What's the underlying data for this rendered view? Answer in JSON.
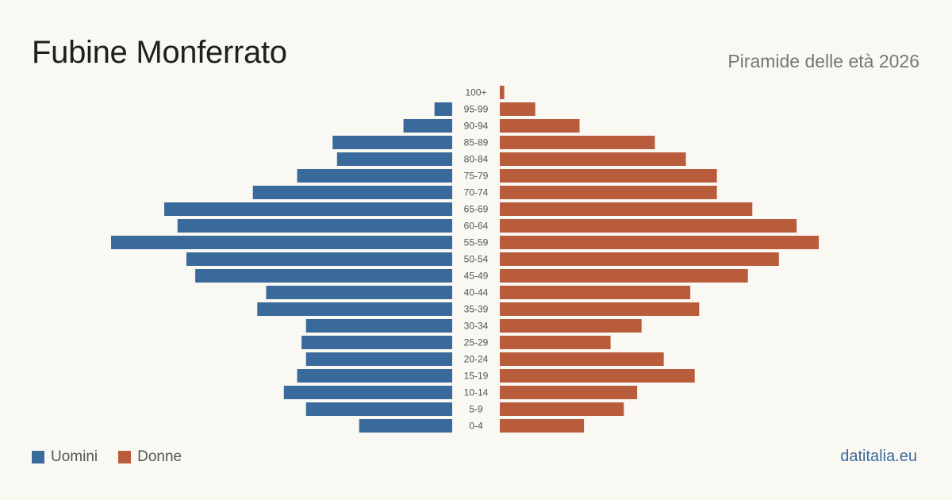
{
  "header": {
    "title": "Fubine Monferrato",
    "subtitle": "Piramide delle età 2026"
  },
  "legend": {
    "men_label": "Uomini",
    "women_label": "Donne"
  },
  "source": "datitalia.eu",
  "colors": {
    "men": "#3a6a9c",
    "women": "#b85c3c",
    "background": "#faf8f3"
  },
  "chart_data": {
    "type": "bar",
    "orientation": "horizontal-pyramid",
    "categories": [
      "100+",
      "95-99",
      "90-94",
      "85-89",
      "80-84",
      "75-79",
      "70-74",
      "65-69",
      "60-64",
      "55-59",
      "50-54",
      "45-49",
      "40-44",
      "35-39",
      "30-34",
      "25-29",
      "20-24",
      "15-19",
      "10-14",
      "5-9",
      "0-4"
    ],
    "series": [
      {
        "name": "Uomini",
        "values": [
          0,
          4,
          11,
          27,
          26,
          35,
          45,
          65,
          62,
          77,
          60,
          58,
          42,
          44,
          33,
          34,
          33,
          35,
          38,
          33,
          21
        ]
      },
      {
        "name": "Donne",
        "values": [
          1,
          8,
          18,
          35,
          42,
          49,
          49,
          57,
          67,
          72,
          63,
          56,
          43,
          45,
          32,
          25,
          37,
          44,
          31,
          28,
          19
        ]
      }
    ],
    "title": "Piramide delle età 2026",
    "xlabel": "",
    "ylabel": "",
    "legend": "bottom-left",
    "grid": false
  }
}
